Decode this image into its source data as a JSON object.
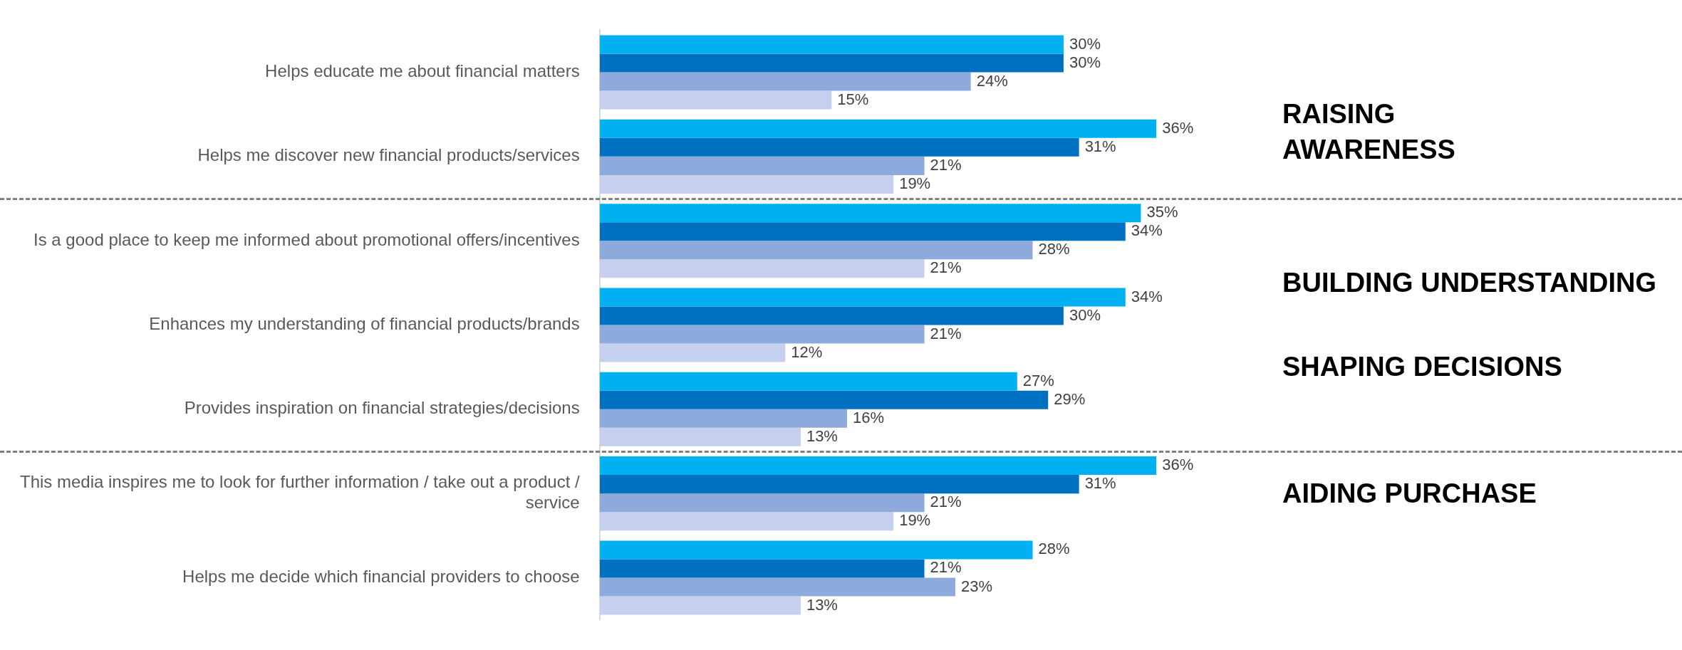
{
  "chart_data": {
    "type": "bar",
    "orientation": "horizontal",
    "data_labels": true,
    "grid": false,
    "legend": false,
    "tick_labels": "y",
    "categories": [
      "Helps educate me about financial matters",
      "Helps me discover new financial products/services",
      "Is a good place to keep me informed about promotional offers/incentives",
      "Enhances my understanding of financial products/brands",
      "Provides inspiration on financial strategies/decisions",
      "This media inspires me to look for further information / take out a product / service",
      "Helps me decide which financial providers to choose"
    ],
    "series": [
      {
        "color": "#00b0f0",
        "values": [
          30,
          36,
          35,
          34,
          27,
          36,
          28
        ],
        "value_labels": [
          "30%",
          "36%",
          "35%",
          "34%",
          "27%",
          "36%",
          "28%"
        ]
      },
      {
        "color": "#0070c0",
        "values": [
          30,
          31,
          34,
          30,
          29,
          31,
          21
        ],
        "value_labels": [
          "30%",
          "31%",
          "34%",
          "30%",
          "29%",
          "31%",
          "21%"
        ]
      },
      {
        "color": "#8ea9db",
        "values": [
          24,
          21,
          28,
          21,
          16,
          21,
          23
        ],
        "value_labels": [
          "24%",
          "21%",
          "28%",
          "21%",
          "16%",
          "21%",
          "23%"
        ]
      },
      {
        "color": "#c5d0ee",
        "values": [
          15,
          19,
          21,
          12,
          13,
          19,
          13
        ],
        "value_labels": [
          "15%",
          "19%",
          "21%",
          "12%",
          "13%",
          "19%",
          "13%"
        ]
      }
    ],
    "annotations": [
      "RAISING AWARENESS",
      "BUILDING UNDERSTANDING",
      "SHAPING DECISIONS",
      "AIDING PURCHASE"
    ]
  }
}
